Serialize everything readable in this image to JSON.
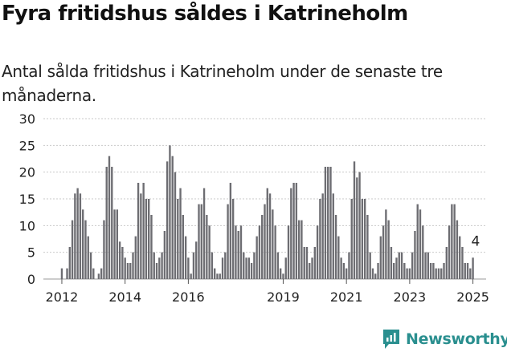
{
  "title": "Fyra fritidshus såldes i Katrineholm",
  "subtitle": "Antal sålda fritidshus i Katrineholm under de senaste tre månaderna.",
  "brand": {
    "name": "Newsworthy",
    "color": "#2a8f8f"
  },
  "colors": {
    "bar": "#6d6d72",
    "highlight": "#2a9d9a",
    "grid": "#c9c9c9",
    "text": "#222222"
  },
  "chart_data": {
    "type": "bar",
    "title": "",
    "xlabel": "",
    "ylabel": "",
    "ylim": [
      0,
      30
    ],
    "yticks": [
      0,
      5,
      10,
      15,
      20,
      25,
      30
    ],
    "grid": "horizontal dashed",
    "xlim": [
      "2011-06",
      "2025-06"
    ],
    "xticks": [
      "2012",
      "2014",
      "2016",
      "2019",
      "2021",
      "2023",
      "2025"
    ],
    "start_month": "2012-01",
    "values": [
      2,
      0,
      2,
      6,
      11,
      16,
      17,
      16,
      13,
      11,
      8,
      5,
      2,
      0,
      1,
      2,
      11,
      21,
      23,
      21,
      13,
      13,
      7,
      6,
      4,
      3,
      3,
      5,
      8,
      18,
      16,
      18,
      15,
      15,
      12,
      5,
      3,
      4,
      5,
      9,
      22,
      25,
      23,
      20,
      15,
      17,
      12,
      8,
      4,
      1,
      5,
      7,
      14,
      14,
      17,
      12,
      10,
      5,
      2,
      1,
      1,
      4,
      5,
      14,
      18,
      15,
      10,
      9,
      10,
      5,
      4,
      4,
      3,
      5,
      8,
      10,
      12,
      14,
      17,
      16,
      13,
      10,
      5,
      2,
      1,
      4,
      10,
      17,
      18,
      18,
      11,
      11,
      6,
      6,
      3,
      4,
      6,
      10,
      15,
      16,
      21,
      21,
      21,
      16,
      12,
      8,
      4,
      3,
      2,
      5,
      15,
      22,
      19,
      20,
      15,
      15,
      12,
      5,
      2,
      1,
      3,
      8,
      10,
      13,
      11,
      6,
      3,
      4,
      5,
      5,
      3,
      2,
      2,
      5,
      9,
      14,
      13,
      10,
      5,
      5,
      3,
      3,
      2,
      2,
      2,
      3,
      6,
      10,
      14,
      14,
      11,
      8,
      6,
      3,
      3,
      2,
      4
    ],
    "annotation": {
      "label": "4",
      "value": 4,
      "month": "2025-02"
    }
  }
}
